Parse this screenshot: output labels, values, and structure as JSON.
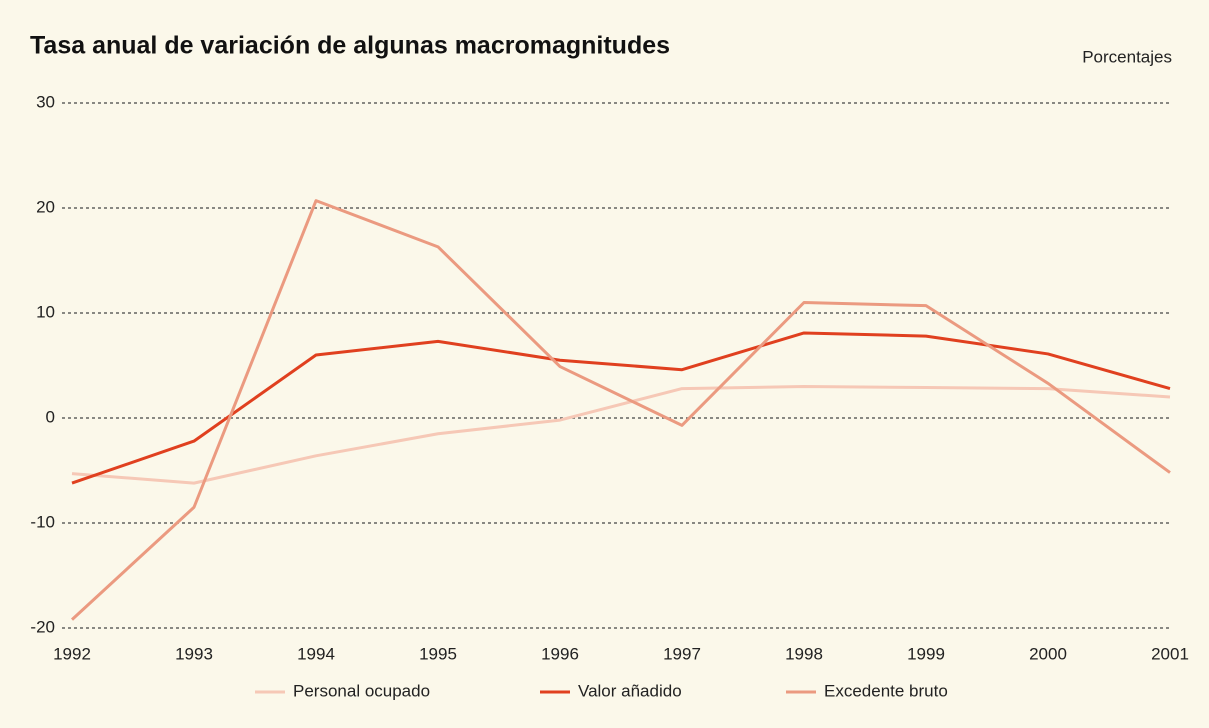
{
  "chart_data": {
    "type": "line",
    "title": "Tasa anual de variación de algunas macromagnitudes",
    "y_label": "Porcentajes",
    "categories": [
      "1992",
      "1993",
      "1994",
      "1995",
      "1996",
      "1997",
      "1998",
      "1999",
      "2000",
      "2001"
    ],
    "series": [
      {
        "name": "Personal ocupado",
        "color": "#f6c8b6",
        "values": [
          -5.3,
          -6.2,
          -3.6,
          -1.5,
          -0.2,
          2.8,
          3.0,
          2.9,
          2.8,
          2.0
        ]
      },
      {
        "name": "Valor añadido",
        "color": "#e0401f",
        "values": [
          -6.2,
          -2.2,
          6.0,
          7.3,
          5.5,
          4.6,
          8.1,
          7.8,
          6.1,
          2.8
        ]
      },
      {
        "name": "Excedente bruto",
        "color": "#eb9a80",
        "values": [
          -19.2,
          -8.5,
          20.7,
          16.3,
          4.9,
          -0.7,
          11.0,
          10.7,
          3.3,
          -5.2
        ]
      }
    ],
    "ylim": [
      -20,
      30
    ],
    "yticks": [
      30,
      20,
      10,
      0,
      -10,
      -20
    ],
    "grid": true
  }
}
